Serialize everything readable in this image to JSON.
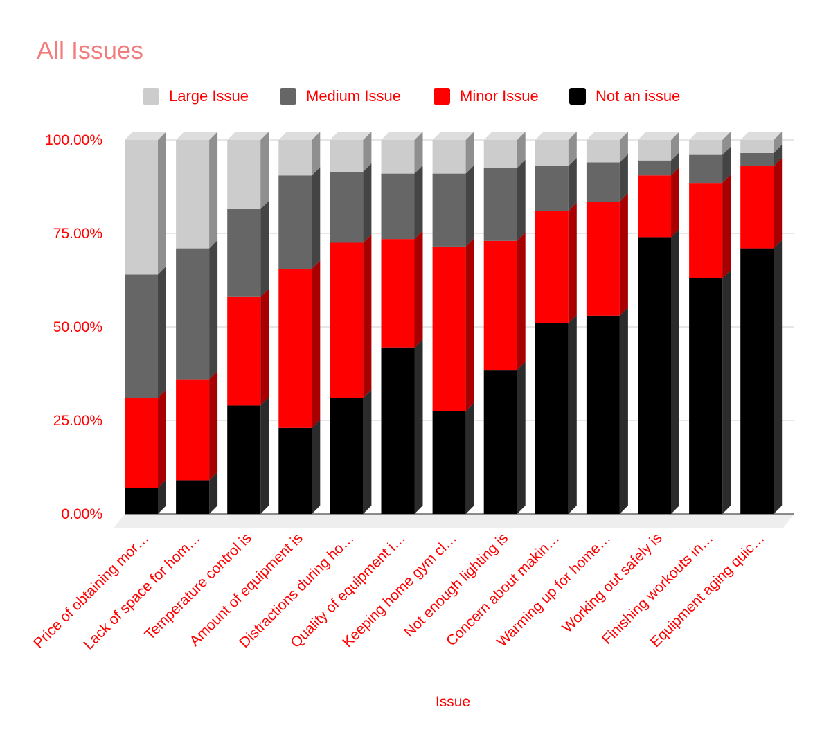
{
  "chart_data": {
    "type": "bar",
    "stacked": true,
    "percent_stacked": true,
    "title": "All Issues",
    "xlabel": "Issue",
    "ylabel": "",
    "ylim": [
      0,
      1
    ],
    "y_ticks": [
      "0.00%",
      "25.00%",
      "50.00%",
      "75.00%",
      "100.00%"
    ],
    "legend_position": "top",
    "categories": [
      "Price of obtaining mor…",
      "Lack of space for hom…",
      "Temperature control is",
      "Amount of equipment is",
      "Distractions during ho…",
      "Quality of equipment i…",
      "Keeping home gym cl…",
      "Not enough lighting is",
      "Concern about makin…",
      "Warming up for home…",
      "Working out safely is",
      "Finishing workouts in…",
      "Equipment aging quic…"
    ],
    "series": [
      {
        "name": "Not an issue",
        "color": "#000000",
        "side_color": "#2b2b2b",
        "values": [
          0.07,
          0.09,
          0.29,
          0.23,
          0.31,
          0.445,
          0.275,
          0.385,
          0.51,
          0.53,
          0.74,
          0.63,
          0.71
        ]
      },
      {
        "name": "Minor Issue",
        "color": "#ff0000",
        "side_color": "#a80000",
        "values": [
          0.24,
          0.27,
          0.29,
          0.425,
          0.415,
          0.29,
          0.44,
          0.345,
          0.3,
          0.305,
          0.165,
          0.255,
          0.22
        ]
      },
      {
        "name": "Medium Issue",
        "color": "#666666",
        "side_color": "#444444",
        "values": [
          0.33,
          0.35,
          0.235,
          0.25,
          0.19,
          0.175,
          0.195,
          0.195,
          0.12,
          0.105,
          0.04,
          0.075,
          0.035
        ]
      },
      {
        "name": "Large Issue",
        "color": "#cccccc",
        "side_color": "#8f8f8f",
        "values": [
          0.36,
          0.29,
          0.185,
          0.095,
          0.085,
          0.09,
          0.09,
          0.075,
          0.07,
          0.06,
          0.055,
          0.04,
          0.035
        ]
      }
    ],
    "legend_order": [
      "Large Issue",
      "Medium Issue",
      "Minor Issue",
      "Not an issue"
    ]
  }
}
